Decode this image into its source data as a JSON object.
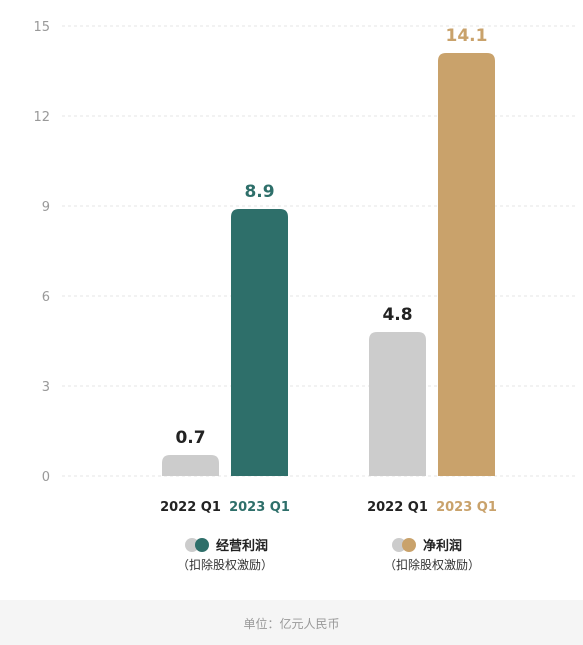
{
  "chart_data": {
    "type": "bar",
    "yticks": [
      "15",
      "12",
      "9",
      "6",
      "3",
      "0"
    ],
    "ylim": [
      0,
      15
    ],
    "grid": true,
    "groups": [
      {
        "name": "经营利润",
        "note": "（扣除股权激励）",
        "bars": [
          {
            "category": "2022 Q1",
            "value": 0.7,
            "value_label": "0.7",
            "color": "#cccccc",
            "label_color": "#222222"
          },
          {
            "category": "2023 Q1",
            "value": 8.9,
            "value_label": "8.9",
            "color": "#2e6f6a",
            "label_color": "#2e6f6a"
          }
        ]
      },
      {
        "name": "净利润",
        "note": "（扣除股权激励）",
        "bars": [
          {
            "category": "2022 Q1",
            "value": 4.8,
            "value_label": "4.8",
            "color": "#cccccc",
            "label_color": "#222222"
          },
          {
            "category": "2023 Q1",
            "value": 14.1,
            "value_label": "14.1",
            "color": "#c9a26b",
            "label_color": "#c9a26b"
          }
        ]
      }
    ],
    "unit": "单位：亿元人民币"
  },
  "colors": {
    "grey": "#cccccc",
    "teal": "#2e6f6a",
    "gold": "#c9a26b",
    "grid": "#e6e6e6"
  }
}
